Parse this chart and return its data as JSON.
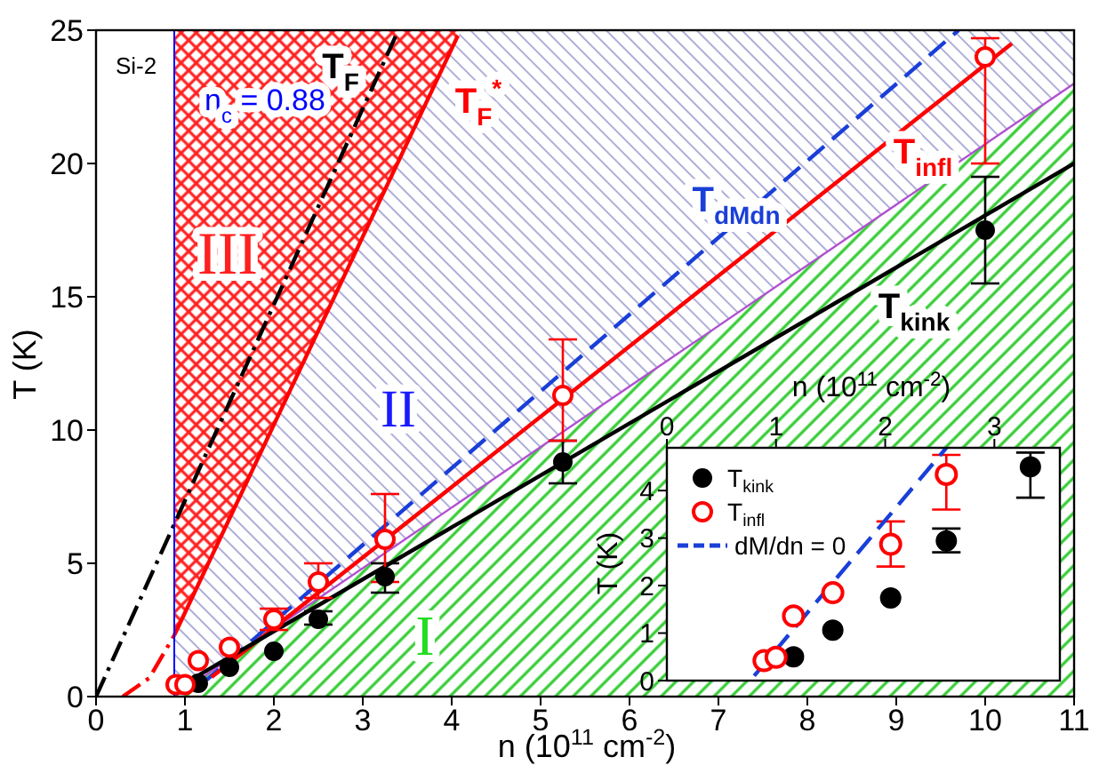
{
  "chart_data": [
    {
      "type": "line",
      "xlabel": "n (10$^{11}$ cm$^{-2}$)",
      "ylabel": "T (K)",
      "xlim": [
        0,
        11
      ],
      "xticks": [
        0,
        1,
        2,
        3,
        4,
        5,
        6,
        7,
        8,
        9,
        10,
        11
      ],
      "ylim": [
        0,
        25
      ],
      "yticks": [
        0,
        5,
        10,
        15,
        20,
        25
      ],
      "ref_lines": [
        {
          "axis": "x",
          "value": 0.88,
          "label": "n$_{c}$ = 0.88",
          "color": "#0000ff"
        }
      ],
      "annotations": [
        "Si-2",
        "III",
        "II",
        "I"
      ],
      "series": [
        {
          "type": "area",
          "color": "#33cc33",
          "x": [
            0.88,
            11
          ],
          "values": [
            0,
            23
          ]
        },
        {
          "name": "T$_{F}$",
          "color": "#000000",
          "line_style": "dashdot",
          "x": [
            0,
            3.4
          ],
          "values": [
            0,
            25
          ]
        },
        {
          "color": "#ff0000",
          "line_style": "dashdot",
          "x": [
            0.3,
            0.6,
            0.88
          ],
          "values": [
            0,
            0.7,
            2.3
          ]
        },
        {
          "name": "T$_{F}$$^{*}$",
          "color": "#ff0000",
          "line_style": "solid",
          "x": [
            0.88,
            4.07
          ],
          "values": [
            2.3,
            24.8
          ]
        },
        {
          "name": "T$_{dMdn}$",
          "color": "#1a3fd8",
          "line_style": "dashed",
          "x": [
            1.2,
            9.7
          ],
          "values": [
            0.5,
            25
          ]
        },
        {
          "name": "T$_{infl}$",
          "color": "#ff0000",
          "line_style": "solid",
          "x": [
            1.3,
            10.3
          ],
          "values": [
            0.73,
            24.5
          ]
        },
        {
          "name": "T$_{kink}$",
          "color": "#000000",
          "line_style": "solid",
          "x": [
            1.0,
            11
          ],
          "values": [
            0.5,
            20
          ]
        },
        {
          "type": "scatter",
          "color": "#000000",
          "marker": "circle",
          "x": [
            1.15,
            1.5,
            2.0,
            2.5,
            3.25,
            5.25,
            10.0
          ],
          "values": [
            0.5,
            1.1,
            1.7,
            2.9,
            4.5,
            8.8,
            17.5
          ],
          "errors": [
            null,
            null,
            null,
            [
              2.7,
              3.2
            ],
            [
              3.9,
              5.0
            ],
            [
              8.0,
              9.6
            ],
            [
              15.5,
              19.5
            ]
          ]
        },
        {
          "type": "scatter",
          "color": "#ff0000",
          "marker": "circle",
          "x": [
            0.9,
            1.0,
            1.15,
            1.5,
            2.0,
            2.5,
            3.25,
            5.25,
            10.0
          ],
          "values": [
            0.45,
            0.45,
            1.35,
            1.85,
            2.9,
            4.3,
            5.9,
            11.3,
            24
          ],
          "errors": [
            null,
            null,
            null,
            null,
            [
              2.5,
              3.3
            ],
            [
              3.7,
              5.0
            ],
            [
              4.3,
              7.6
            ],
            [
              9.6,
              13.4
            ],
            [
              20,
              24.7
            ]
          ]
        }
      ]
    },
    {
      "type": "scatter",
      "xlabel": "n (10$^{11}$ cm$^{-2}$)",
      "ylabel": "T (K)",
      "xlim": [
        0,
        3.6
      ],
      "xticks": [
        0,
        1,
        2,
        3
      ],
      "ylim": [
        0,
        4.9
      ],
      "yticks": [
        0,
        1,
        2,
        3,
        4
      ],
      "legend": "top left",
      "series": [
        {
          "name": "T$_{kink}$",
          "color": "#000000",
          "marker": "circle",
          "x": [
            1.16,
            1.52,
            2.05,
            2.56,
            3.33
          ],
          "values": [
            0.5,
            1.06,
            1.74,
            2.94,
            4.5
          ],
          "errors": [
            null,
            null,
            null,
            [
              2.7,
              3.2
            ],
            [
              3.85,
              4.8
            ]
          ]
        },
        {
          "name": "T$_{infl}$",
          "color": "#ff0000",
          "marker": "circle",
          "x": [
            0.89,
            1.0,
            1.16,
            1.52,
            2.05,
            2.56
          ],
          "values": [
            0.42,
            0.49,
            1.36,
            1.85,
            2.87,
            4.34
          ],
          "errors": [
            null,
            null,
            null,
            null,
            [
              2.4,
              3.35
            ],
            [
              3.6,
              4.75
            ]
          ]
        },
        {
          "type": "line",
          "name": "dM/dn = 0",
          "color": "#1a3fd8",
          "line_style": "dashed",
          "x": [
            0.8,
            2.56
          ],
          "values": [
            0.1,
            4.9
          ]
        }
      ]
    }
  ]
}
